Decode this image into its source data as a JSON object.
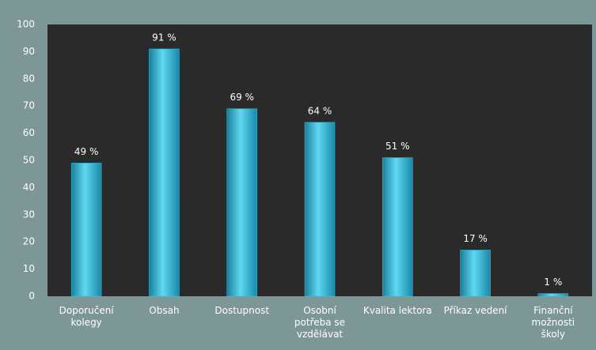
{
  "chart_data": {
    "type": "bar",
    "categories": [
      "Doporučení kolegy",
      "Obsah",
      "Dostupnost",
      "Osobní potřeba se vzdělávat",
      "Kvalita lektora",
      "Příkaz vedení",
      "Finanční možnosti školy"
    ],
    "values": [
      49,
      91,
      69,
      64,
      51,
      17,
      1
    ],
    "value_labels": [
      "49 %",
      "91 %",
      "69 %",
      "64 %",
      "51 %",
      "17 %",
      "1 %"
    ],
    "color": "#3cc4e4",
    "ylim": [
      0,
      100
    ],
    "yticks": [
      0,
      10,
      20,
      30,
      40,
      50,
      60,
      70,
      80,
      90,
      100
    ],
    "grid": false
  }
}
